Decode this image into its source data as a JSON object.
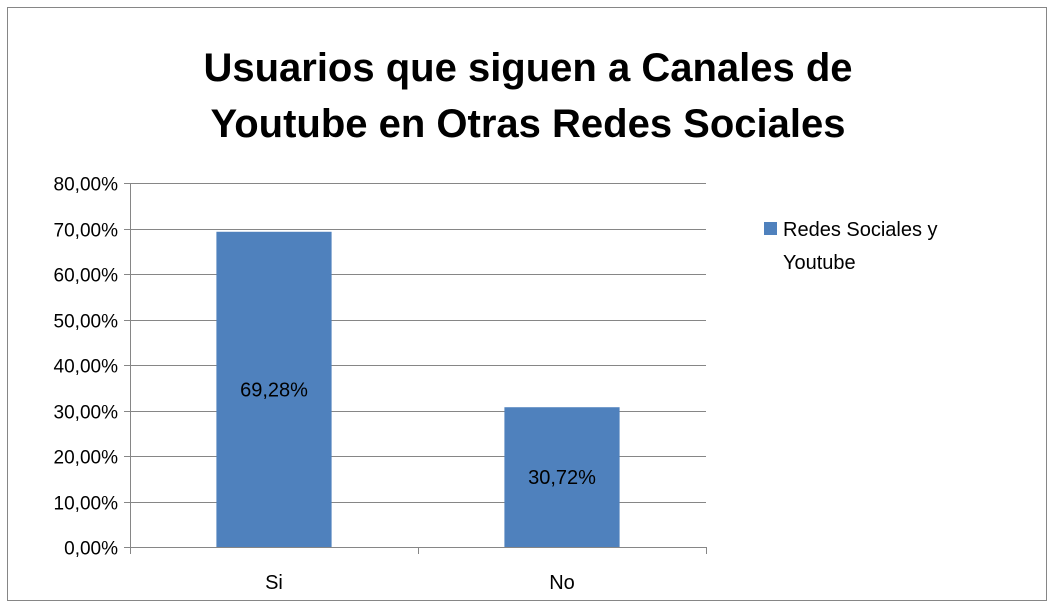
{
  "chart_data": {
    "type": "bar",
    "title_lines": [
      "Usuarios que siguen a Canales de",
      "Youtube en Otras Redes Sociales"
    ],
    "categories": [
      "Si",
      "No"
    ],
    "series": [
      {
        "name_lines": [
          "Redes Sociales y",
          "Youtube"
        ],
        "values": [
          69.28,
          30.72
        ],
        "data_labels": [
          "69,28%",
          "30,72%"
        ],
        "color": "#4f81bd"
      }
    ],
    "ylim": [
      0,
      80
    ],
    "ytick_values": [
      0,
      10,
      20,
      30,
      40,
      50,
      60,
      70,
      80
    ],
    "ytick_labels": [
      "0,00%",
      "10,00%",
      "20,00%",
      "30,00%",
      "40,00%",
      "50,00%",
      "60,00%",
      "70,00%",
      "80,00%"
    ],
    "grid": true,
    "legend_position": "right"
  }
}
